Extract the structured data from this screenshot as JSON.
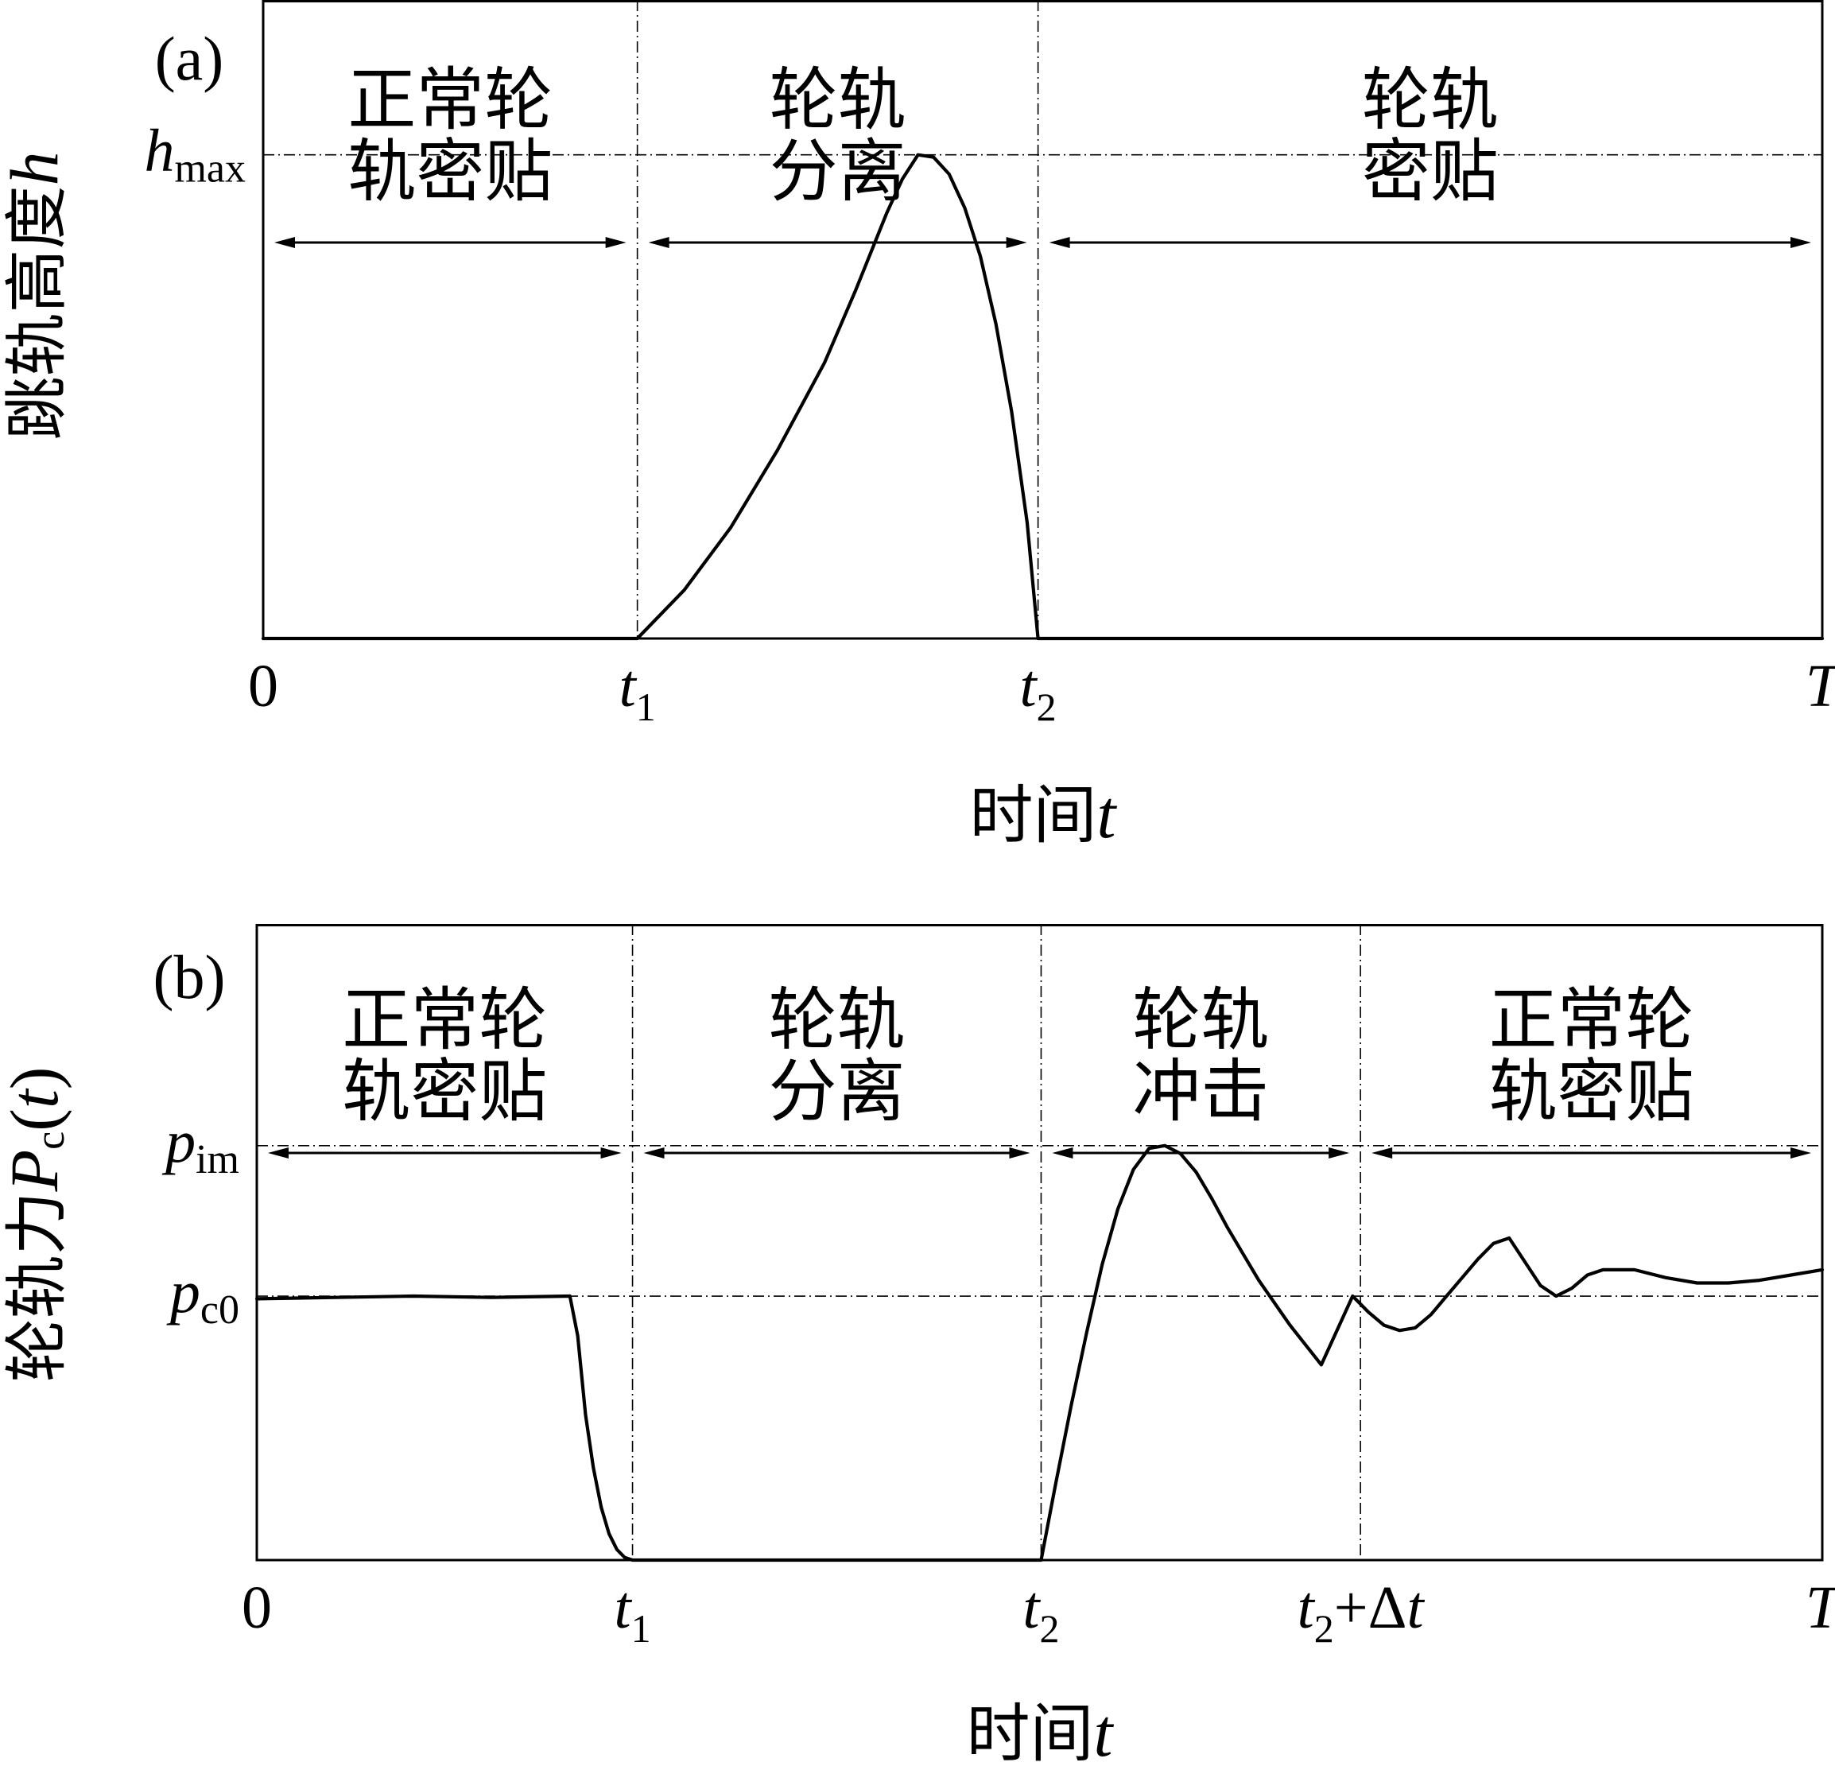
{
  "chart_data": [
    {
      "type": "line",
      "panel_label": "(a)",
      "ylabel_cn": "跳轨高度",
      "ylabel_sym": "h",
      "xlabel_cn": "时间",
      "xlabel_sym": "t",
      "x_ticks": [
        {
          "id": "zero",
          "pos": 0.0,
          "main": "0",
          "sub": "",
          "italic": false
        },
        {
          "id": "t1",
          "pos": 0.24,
          "main": "t",
          "sub": "1",
          "italic": true
        },
        {
          "id": "t2",
          "pos": 0.497,
          "main": "t",
          "sub": "2",
          "italic": true
        },
        {
          "id": "T",
          "pos": 1.0,
          "main": "T",
          "sub": "",
          "italic": true
        }
      ],
      "y_ticks": [
        {
          "id": "hmax",
          "value": 1.0,
          "main": "h",
          "sub": "max"
        }
      ],
      "ylim": [
        0,
        1.32
      ],
      "xlim": [
        0,
        1
      ],
      "guides": {
        "vertical": [
          0.24,
          0.497
        ],
        "horizontal": [
          1.0
        ]
      },
      "phases": [
        {
          "id": "normal-contact",
          "lines": [
            "正常轮",
            "轨密贴"
          ],
          "from": 0.0,
          "to": 0.24
        },
        {
          "id": "separation",
          "lines": [
            "轮轨",
            "分离"
          ],
          "from": 0.24,
          "to": 0.497
        },
        {
          "id": "contact",
          "lines": [
            "轮轨",
            "密贴"
          ],
          "from": 0.497,
          "to": 1.0
        }
      ],
      "series": [
        {
          "x": [
            0,
            0.24,
            0.27,
            0.3,
            0.33,
            0.36,
            0.38,
            0.4,
            0.41,
            0.42,
            0.43,
            0.44,
            0.45,
            0.46,
            0.47,
            0.48,
            0.49,
            0.497,
            1.0
          ],
          "y": [
            0,
            0,
            0.1,
            0.23,
            0.39,
            0.57,
            0.72,
            0.88,
            0.95,
            1.0,
            0.995,
            0.96,
            0.89,
            0.79,
            0.65,
            0.47,
            0.24,
            0,
            0
          ]
        }
      ]
    },
    {
      "type": "line",
      "panel_label": "(b)",
      "ylabel_cn": "轮轨力",
      "ylabel_sym": "P",
      "ylabel_sub": "c",
      "ylabel_arg": "(t)",
      "xlabel_cn": "时间",
      "xlabel_sym": "t",
      "x_ticks": [
        {
          "id": "zero",
          "pos": 0.0,
          "main": "0",
          "sub": "",
          "italic": false
        },
        {
          "id": "t1",
          "pos": 0.24,
          "main": "t",
          "sub": "1",
          "italic": true
        },
        {
          "id": "t2",
          "pos": 0.501,
          "main": "t",
          "sub": "2",
          "italic": true
        },
        {
          "id": "t2-dt",
          "pos": 0.705,
          "main": "t",
          "sub": "2",
          "italic": true,
          "suffix": "+Δ",
          "suffix_sym": "t"
        },
        {
          "id": "T",
          "pos": 1.0,
          "main": "T",
          "sub": "",
          "italic": true
        }
      ],
      "y_ticks": [
        {
          "id": "pim",
          "value": 1.57,
          "main": "p",
          "sub": "im"
        },
        {
          "id": "pc0",
          "value": 1.0,
          "main": "p",
          "sub": "c0"
        }
      ],
      "ylim": [
        0,
        2.41
      ],
      "xlim": [
        0,
        1
      ],
      "guides": {
        "vertical": [
          0.24,
          0.501,
          0.705
        ],
        "horizontal": [
          1.57,
          1.0
        ]
      },
      "phases": [
        {
          "id": "normal-contact-1",
          "lines": [
            "正常轮",
            "轨密贴"
          ],
          "from": 0.0,
          "to": 0.24
        },
        {
          "id": "separation",
          "lines": [
            "轮轨",
            "分离"
          ],
          "from": 0.24,
          "to": 0.501
        },
        {
          "id": "impact",
          "lines": [
            "轮轨",
            "冲击"
          ],
          "from": 0.501,
          "to": 0.705
        },
        {
          "id": "normal-contact-2",
          "lines": [
            "正常轮",
            "轨密贴"
          ],
          "from": 0.705,
          "to": 1.0
        }
      ],
      "series": [
        {
          "x": [
            0,
            0.05,
            0.1,
            0.15,
            0.2,
            0.205,
            0.21,
            0.215,
            0.22,
            0.225,
            0.23,
            0.235,
            0.24,
            0.501,
            0.51,
            0.52,
            0.53,
            0.54,
            0.55,
            0.56,
            0.57,
            0.58,
            0.59,
            0.6,
            0.61,
            0.62,
            0.63,
            0.64,
            0.66,
            0.68,
            0.7,
            0.71,
            0.72,
            0.73,
            0.74,
            0.75,
            0.76,
            0.77,
            0.78,
            0.79,
            0.8,
            0.81,
            0.82,
            0.83,
            0.84,
            0.85,
            0.86,
            0.88,
            0.9,
            0.92,
            0.94,
            0.96,
            0.98,
            1.0
          ],
          "y": [
            0.99,
            0.995,
            1.0,
            0.995,
            1.0,
            0.85,
            0.55,
            0.35,
            0.2,
            0.1,
            0.04,
            0.01,
            0,
            0,
            0.28,
            0.58,
            0.86,
            1.12,
            1.33,
            1.48,
            1.56,
            1.57,
            1.54,
            1.47,
            1.37,
            1.26,
            1.16,
            1.06,
            0.89,
            0.74,
            1.0,
            0.94,
            0.89,
            0.87,
            0.88,
            0.93,
            1.0,
            1.07,
            1.14,
            1.2,
            1.22,
            1.13,
            1.04,
            1.0,
            1.03,
            1.08,
            1.1,
            1.1,
            1.07,
            1.05,
            1.05,
            1.06,
            1.08,
            1.1
          ]
        }
      ]
    }
  ]
}
